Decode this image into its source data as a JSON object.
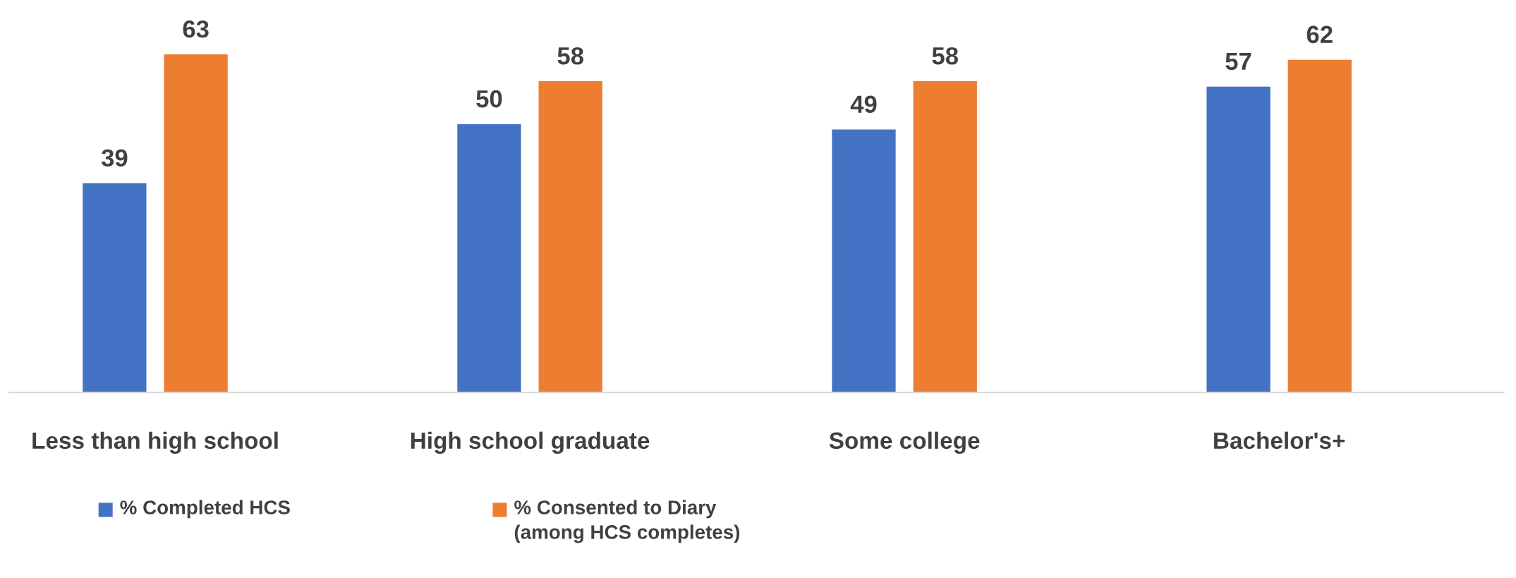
{
  "chart_data": {
    "type": "bar",
    "categories": [
      "Less than high school",
      "High school graduate",
      "Some college",
      "Bachelor's+"
    ],
    "series": [
      {
        "name": "% Completed HCS",
        "color": "#4472c4",
        "values": [
          39,
          50,
          49,
          57
        ]
      },
      {
        "name": "% Consented to Diary\n(among HCS completes)",
        "color": "#ed7d31",
        "values": [
          63,
          58,
          58,
          62
        ]
      }
    ],
    "data_labels": true,
    "grid": false,
    "legend": "bottom",
    "tick_labels": "x"
  }
}
